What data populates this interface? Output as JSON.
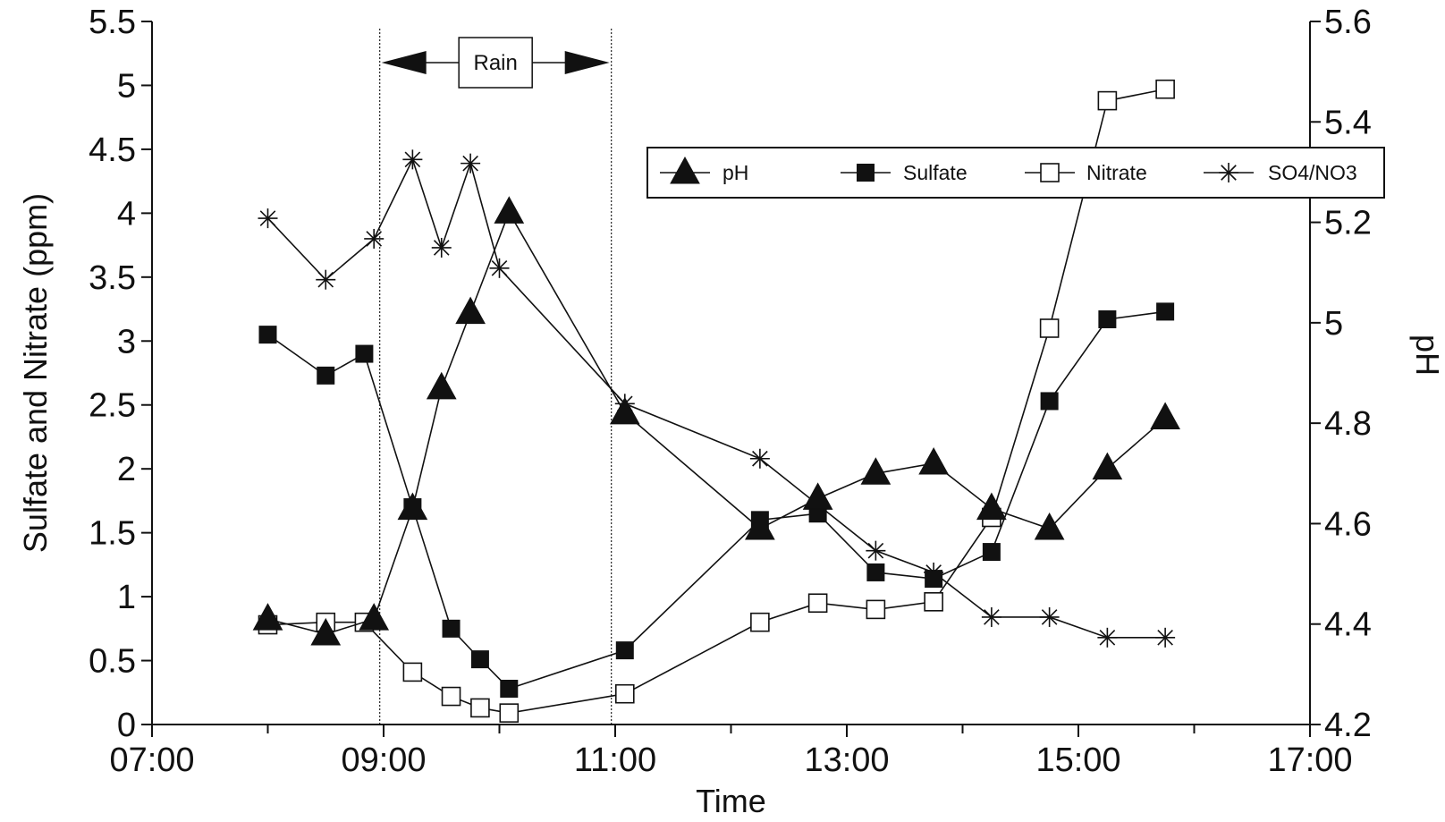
{
  "chart_data": {
    "type": "line",
    "xlabel": "Time",
    "ylabel_left": "Sulfate and Nitrate (ppm)",
    "ylabel_right": "pH",
    "x_ticks": [
      "07:00",
      "09:00",
      "11:00",
      "13:00",
      "15:00",
      "17:00"
    ],
    "x_range": [
      "07:00",
      "17:00"
    ],
    "y_left_ticks": [
      "0",
      "0.5",
      "1",
      "1.5",
      "2",
      "2.5",
      "3",
      "3.5",
      "4",
      "4.5",
      "5",
      "5.5"
    ],
    "y_left_range": [
      0,
      5.5
    ],
    "y_right_ticks": [
      "4.2",
      "4.4",
      "4.6",
      "4.8",
      "5",
      "5.2",
      "5.4",
      "5.6"
    ],
    "y_right_range": [
      4.2,
      5.6
    ],
    "rain_period": {
      "label": "Rain",
      "start": "08:58",
      "end": "10:58"
    },
    "legend_position": "top-right",
    "grid": false,
    "series": [
      {
        "name": "pH",
        "axis": "right",
        "marker": "filled-triangle",
        "x": [
          "08:00",
          "08:30",
          "08:55",
          "09:15",
          "09:30",
          "09:45",
          "10:05",
          "11:05",
          "12:15",
          "12:45",
          "13:15",
          "13:45",
          "14:15",
          "14:45",
          "15:15",
          "15:45"
        ],
        "values": [
          4.41,
          4.38,
          4.41,
          4.63,
          4.87,
          5.02,
          5.22,
          4.82,
          4.59,
          4.65,
          4.7,
          4.72,
          4.63,
          4.59,
          4.71,
          4.81
        ]
      },
      {
        "name": "Sulfate",
        "axis": "left",
        "marker": "filled-square",
        "x": [
          "08:00",
          "08:30",
          "08:50",
          "09:15",
          "09:35",
          "09:50",
          "10:05",
          "11:05",
          "12:15",
          "12:45",
          "13:15",
          "13:45",
          "14:15",
          "14:45",
          "15:15",
          "15:45"
        ],
        "values": [
          3.05,
          2.73,
          2.9,
          1.7,
          0.75,
          0.51,
          0.28,
          0.58,
          1.6,
          1.65,
          1.19,
          1.14,
          1.35,
          2.53,
          3.17,
          3.23
        ]
      },
      {
        "name": "Nitrate",
        "axis": "left",
        "marker": "open-square",
        "x": [
          "08:00",
          "08:30",
          "08:50",
          "09:15",
          "09:35",
          "09:50",
          "10:05",
          "11:05",
          "12:15",
          "12:45",
          "13:15",
          "13:45",
          "14:15",
          "14:45",
          "15:15",
          "15:45"
        ],
        "values": [
          0.78,
          0.8,
          0.8,
          0.41,
          0.22,
          0.13,
          0.09,
          0.24,
          0.8,
          0.95,
          0.9,
          0.96,
          1.62,
          3.1,
          4.88,
          4.97
        ]
      },
      {
        "name": "SO4/NO3",
        "axis": "left",
        "marker": "asterisk",
        "x": [
          "08:00",
          "08:30",
          "08:55",
          "09:15",
          "09:30",
          "09:45",
          "10:00",
          "11:05",
          "12:15",
          "13:15",
          "13:45",
          "14:15",
          "14:45",
          "15:15",
          "15:45"
        ],
        "values": [
          3.96,
          3.48,
          3.8,
          4.42,
          3.73,
          4.39,
          3.57,
          2.51,
          2.08,
          1.36,
          1.19,
          0.84,
          0.84,
          0.68,
          0.68
        ]
      }
    ]
  }
}
